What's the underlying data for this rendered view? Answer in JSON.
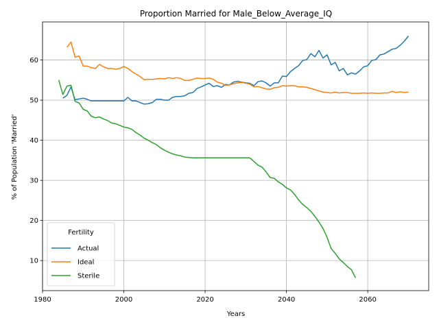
{
  "chart_data": {
    "type": "line",
    "title": "Proportion Married for Male_Below_Average_IQ",
    "xlabel": "Years",
    "ylabel": "% of Population 'Married'",
    "xlim": [
      1980,
      2075
    ],
    "ylim": [
      2.5,
      69.5
    ],
    "xticks": [
      1980,
      2000,
      2020,
      2040,
      2060
    ],
    "yticks": [
      10,
      20,
      30,
      40,
      50,
      60
    ],
    "grid": true,
    "legend": {
      "title": "Fertility",
      "placement": "lower-left"
    },
    "series": [
      {
        "name": "Actual",
        "color": "#1f77b4",
        "x": [
          1985,
          1986,
          1987,
          1988,
          1989,
          1990,
          1991,
          1992,
          1993,
          1994,
          1995,
          1996,
          1997,
          1998,
          1999,
          2000,
          2001,
          2002,
          2003,
          2004,
          2005,
          2006,
          2007,
          2008,
          2009,
          2010,
          2011,
          2012,
          2013,
          2014,
          2015,
          2016,
          2017,
          2018,
          2019,
          2020,
          2021,
          2022,
          2023,
          2024,
          2025,
          2026,
          2027,
          2028,
          2029,
          2030,
          2031,
          2032,
          2033,
          2034,
          2035,
          2036,
          2037,
          2038,
          2039,
          2040,
          2041,
          2042,
          2043,
          2044,
          2045,
          2046,
          2047,
          2048,
          2049,
          2050,
          2051,
          2052,
          2053,
          2054,
          2055,
          2056,
          2057,
          2058,
          2059,
          2060,
          2061,
          2062,
          2063,
          2064,
          2065,
          2066,
          2067,
          2068,
          2069,
          2070
        ],
        "y": [
          50.5,
          51.2,
          53.3,
          50.1,
          50.3,
          50.5,
          50.2,
          49.8,
          49.8,
          49.8,
          49.8,
          49.8,
          49.8,
          49.8,
          49.8,
          49.8,
          50.7,
          49.8,
          49.8,
          49.4,
          49.0,
          49.1,
          49.4,
          50.2,
          50.2,
          50.0,
          50.0,
          50.7,
          50.9,
          50.9,
          51.1,
          51.7,
          51.9,
          52.9,
          53.3,
          53.8,
          54.2,
          53.4,
          53.6,
          53.2,
          53.9,
          53.8,
          54.5,
          54.7,
          54.5,
          54.3,
          54.2,
          53.6,
          54.6,
          54.8,
          54.3,
          53.5,
          54.3,
          54.3,
          56.0,
          55.9,
          57.1,
          57.9,
          58.6,
          59.9,
          60.1,
          61.6,
          60.8,
          62.4,
          60.5,
          61.3,
          58.8,
          59.4,
          57.3,
          57.9,
          56.3,
          56.8,
          56.5,
          57.3,
          58.3,
          58.6,
          59.9,
          60.1,
          61.3,
          61.5,
          62.1,
          62.7,
          62.9,
          63.7,
          64.7,
          66.0
        ]
      },
      {
        "name": "Ideal",
        "color": "#ff7f0e",
        "x": [
          1986,
          1987,
          1988,
          1989,
          1990,
          1991,
          1992,
          1993,
          1994,
          1995,
          1996,
          1997,
          1998,
          1999,
          2000,
          2001,
          2002,
          2003,
          2004,
          2005,
          2006,
          2007,
          2008,
          2009,
          2010,
          2011,
          2012,
          2013,
          2014,
          2015,
          2016,
          2017,
          2018,
          2019,
          2020,
          2021,
          2022,
          2023,
          2024,
          2025,
          2026,
          2027,
          2028,
          2029,
          2030,
          2031,
          2032,
          2033,
          2034,
          2035,
          2036,
          2037,
          2038,
          2039,
          2040,
          2041,
          2042,
          2043,
          2044,
          2045,
          2046,
          2047,
          2048,
          2049,
          2050,
          2051,
          2052,
          2053,
          2054,
          2055,
          2056,
          2057,
          2058,
          2059,
          2060,
          2061,
          2062,
          2063,
          2064,
          2065,
          2066,
          2067,
          2068,
          2069,
          2070
        ],
        "y": [
          63.2,
          64.5,
          60.7,
          61.0,
          58.5,
          58.5,
          58.1,
          57.9,
          58.9,
          58.3,
          57.9,
          57.9,
          57.7,
          57.9,
          58.4,
          57.9,
          57.1,
          56.5,
          55.9,
          55.1,
          55.2,
          55.2,
          55.3,
          55.4,
          55.3,
          55.6,
          55.4,
          55.6,
          55.4,
          54.9,
          54.9,
          55.2,
          55.5,
          55.4,
          55.4,
          55.5,
          55.2,
          54.5,
          54.2,
          53.7,
          53.8,
          54.1,
          54.3,
          54.4,
          54.2,
          54.0,
          53.3,
          53.4,
          53.1,
          52.8,
          52.7,
          53.1,
          53.2,
          53.6,
          53.5,
          53.6,
          53.6,
          53.3,
          53.3,
          53.2,
          52.9,
          52.6,
          52.3,
          52.0,
          51.9,
          51.8,
          52.0,
          51.8,
          51.9,
          51.9,
          51.7,
          51.7,
          51.7,
          51.8,
          51.7,
          51.8,
          51.7,
          51.7,
          51.8,
          51.8,
          52.2,
          51.9,
          52.1,
          51.9,
          52.0
        ]
      },
      {
        "name": "Sterile",
        "color": "#2ca02c",
        "x": [
          1984,
          1985,
          1986,
          1987,
          1988,
          1989,
          1990,
          1991,
          1992,
          1993,
          1994,
          1995,
          1996,
          1997,
          1998,
          1999,
          2000,
          2001,
          2002,
          2003,
          2004,
          2005,
          2006,
          2007,
          2008,
          2009,
          2010,
          2011,
          2012,
          2013,
          2014,
          2015,
          2016,
          2017,
          2018,
          2019,
          2020,
          2021,
          2022,
          2023,
          2024,
          2025,
          2026,
          2027,
          2028,
          2029,
          2030,
          2031,
          2032,
          2033,
          2034,
          2035,
          2036,
          2037,
          2038,
          2039,
          2040,
          2041,
          2042,
          2043,
          2044,
          2045,
          2046,
          2047,
          2048,
          2049,
          2050,
          2051,
          2052,
          2053,
          2054,
          2055,
          2056,
          2057
        ],
        "y": [
          55.0,
          51.4,
          53.5,
          53.7,
          49.7,
          49.3,
          47.7,
          47.3,
          46.0,
          45.6,
          45.8,
          45.3,
          44.9,
          44.3,
          44.1,
          43.7,
          43.3,
          43.1,
          42.7,
          41.9,
          41.3,
          40.5,
          40.0,
          39.4,
          38.9,
          38.1,
          37.5,
          37.0,
          36.6,
          36.3,
          36.1,
          35.8,
          35.7,
          35.6,
          35.6,
          35.6,
          35.6,
          35.6,
          35.6,
          35.6,
          35.6,
          35.6,
          35.6,
          35.6,
          35.6,
          35.6,
          35.6,
          35.6,
          34.7,
          33.8,
          33.3,
          32.1,
          30.7,
          30.5,
          29.6,
          29.0,
          28.1,
          27.6,
          26.5,
          25.1,
          24.0,
          23.2,
          22.3,
          21.0,
          19.6,
          18.0,
          15.8,
          13.0,
          11.8,
          10.4,
          9.5,
          8.5,
          7.7,
          5.7
        ]
      }
    ]
  }
}
